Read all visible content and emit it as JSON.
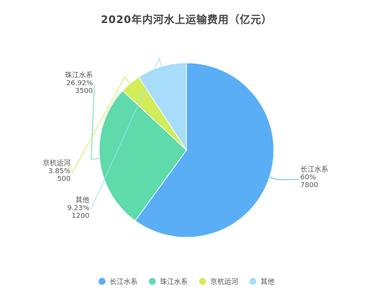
{
  "chart_data": {
    "type": "pie",
    "title": "2020年内河水上运输费用（亿元）",
    "slices": [
      {
        "name": "长江水系",
        "percent": "60%",
        "value": 7800,
        "color": "#5aaef6"
      },
      {
        "name": "珠江水系",
        "percent": "26.92%",
        "value": 3500,
        "color": "#5fdaab"
      },
      {
        "name": "京杭运河",
        "percent": "3.85%",
        "value": 500,
        "color": "#d3ec5a"
      },
      {
        "name": "其他",
        "percent": "9.23%",
        "value": 1200,
        "color": "#a8dcfb"
      }
    ],
    "legend_position": "bottom"
  },
  "legend": {
    "items": [
      "长江水系",
      "珠江水系",
      "京杭运河",
      "其他"
    ]
  }
}
